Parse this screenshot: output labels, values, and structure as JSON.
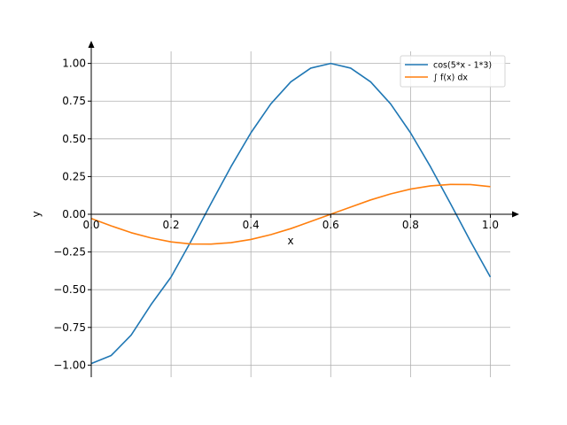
{
  "chart_data": {
    "type": "line",
    "title": "",
    "xlabel": "x",
    "ylabel": "y",
    "xlim": [
      0.0,
      1.05
    ],
    "ylim": [
      -1.08,
      1.08
    ],
    "xticks": [
      0.0,
      0.2,
      0.4,
      0.6,
      0.8,
      1.0
    ],
    "xtick_labels": [
      "0.0",
      "0.2",
      "0.4",
      "0.6",
      "0.8",
      "1.0"
    ],
    "yticks": [
      -1.0,
      -0.75,
      -0.5,
      -0.25,
      0.0,
      0.25,
      0.5,
      0.75,
      1.0
    ],
    "ytick_labels": [
      "−1.00",
      "−0.75",
      "−0.50",
      "−0.25",
      "0.00",
      "0.25",
      "0.50",
      "0.75",
      "1.00"
    ],
    "grid": true,
    "legend_position": "top-right",
    "series": [
      {
        "name": "cos(5*x - 1*3)",
        "color": "#1f77b4",
        "x": [
          0.0,
          0.05,
          0.1,
          0.15,
          0.2,
          0.25,
          0.3,
          0.35,
          0.4,
          0.45,
          0.5,
          0.55,
          0.6,
          0.65,
          0.7,
          0.75,
          0.8,
          0.85,
          0.9,
          0.95,
          1.0
        ],
        "y": [
          -0.99,
          -0.936,
          -0.801,
          -0.598,
          -0.416,
          -0.178,
          0.071,
          0.315,
          0.54,
          0.732,
          0.878,
          0.969,
          1.0,
          0.969,
          0.878,
          0.732,
          0.54,
          0.315,
          0.071,
          -0.178,
          -0.416
        ]
      },
      {
        "name": "∫ f(x) dx",
        "color": "#ff7f0e",
        "x": [
          0.0,
          0.05,
          0.1,
          0.15,
          0.2,
          0.25,
          0.3,
          0.35,
          0.4,
          0.45,
          0.5,
          0.55,
          0.6,
          0.65,
          0.7,
          0.75,
          0.8,
          0.85,
          0.9,
          0.95,
          1.0
        ],
        "y": [
          -0.028,
          -0.077,
          -0.122,
          -0.157,
          -0.183,
          -0.197,
          -0.198,
          -0.188,
          -0.167,
          -0.135,
          -0.095,
          -0.048,
          0.0,
          0.048,
          0.095,
          0.135,
          0.167,
          0.188,
          0.198,
          0.197,
          0.183
        ]
      }
    ]
  }
}
